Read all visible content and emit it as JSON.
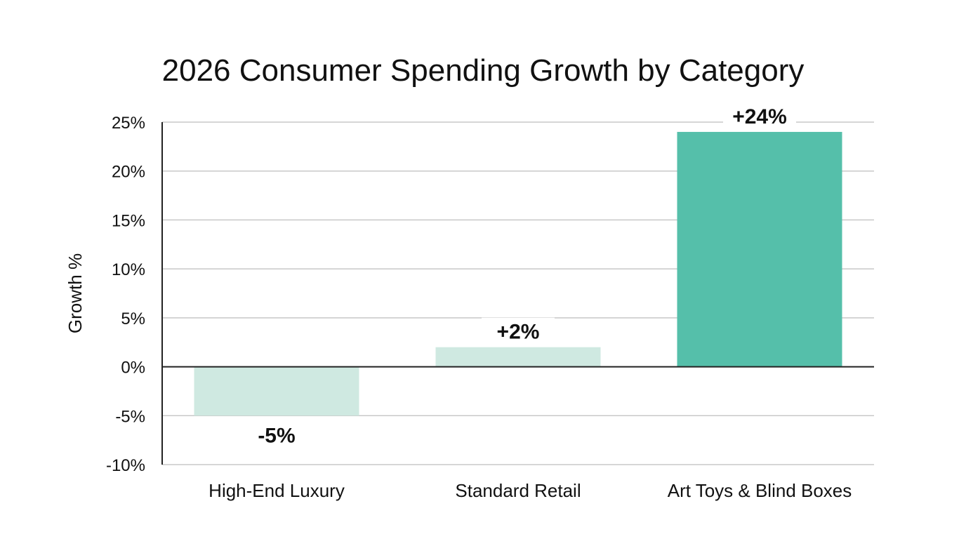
{
  "chart_data": {
    "type": "bar",
    "title": "2026 Consumer Spending Growth by Category",
    "xlabel": "",
    "ylabel": "Growth %",
    "categories": [
      "High-End Luxury",
      "Standard Retail",
      "Art Toys & Blind Boxes"
    ],
    "values": [
      -5,
      2,
      24
    ],
    "data_labels": [
      "-5%",
      "+2%",
      "+24%"
    ],
    "bar_colors": [
      "#cfe9e1",
      "#cfe9e1",
      "#55bfaa"
    ],
    "ylim": [
      -10,
      25
    ],
    "yticks": [
      25,
      20,
      15,
      10,
      5,
      0,
      -5,
      -10
    ],
    "ytick_labels": [
      "25%",
      "20%",
      "15%",
      "10%",
      "5%",
      "0%",
      "-5%",
      "-10%"
    ],
    "grid": true,
    "legend": "none"
  }
}
